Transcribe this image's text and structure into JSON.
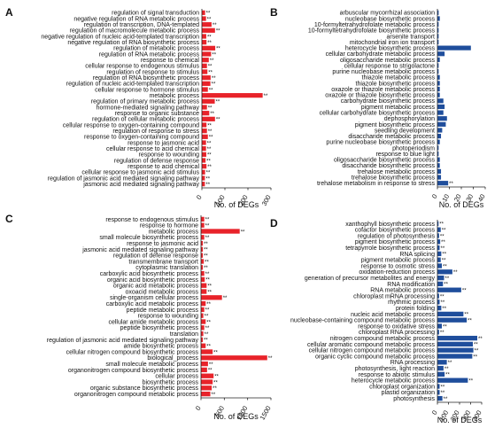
{
  "chart_data": [
    {
      "panel": "A",
      "type": "bar",
      "orientation": "horizontal",
      "color": "#e8232a",
      "xlabel": "No. of DEGs",
      "xlim": [
        0,
        300
      ],
      "xticks": [
        "0",
        "100",
        "200",
        "300"
      ],
      "categories": [
        "regulation of signal transduction",
        "negative regulation of RNA metabolic process",
        "regulation of transcription, DNA-templated",
        "regulation of macromolecule metabolic process",
        "negative regulation of nucleic acid-templated transcription",
        "negative regulation of RNA biosynthetic process",
        "regulation of metabolic process",
        "regulation of RNA metabolic process",
        "response to chemical",
        "cellular response to endogenous stimulus",
        "regulation of response to stimulus",
        "regulation of RNA biosynthetic process",
        "regulation of nucleic acid-templated transcription",
        "cellular response to hormone stimulus",
        "metabolic process",
        "regulation of primary metabolic process",
        "hormone-mediated signaling pathway",
        "response to organic substance",
        "regulation of cellular metabolic process",
        "cellular response to oxygen-containing compound",
        "regulation of response to stress",
        "response to oxygen-containing compound",
        "response to jasmonic acid",
        "cellular response to acid chemical",
        "response to wounding",
        "regulation of defense response",
        "response to acid chemical",
        "cellular response to jasmonic acid stimulus",
        "regulation of jasmonic acid mediated signaling pathway",
        "jasmonic acid mediated signaling pathway"
      ],
      "values": [
        14,
        18,
        42,
        57,
        19,
        20,
        58,
        40,
        30,
        22,
        24,
        38,
        37,
        26,
        264,
        56,
        22,
        32,
        57,
        20,
        22,
        26,
        18,
        18,
        19,
        16,
        20,
        14,
        13,
        13
      ],
      "significance": [
        "**",
        "**",
        "**",
        "**",
        "**",
        "**",
        "**",
        "**",
        "**",
        "**",
        "**",
        "**",
        "**",
        "**",
        "**",
        "**",
        "**",
        "**",
        "**",
        "**",
        "**",
        "**",
        "**",
        "**",
        "**",
        "**",
        "**",
        "**",
        "**",
        "**"
      ]
    },
    {
      "panel": "B",
      "type": "bar",
      "orientation": "horizontal",
      "color": "#1f4e9c",
      "xlabel": "No. of DEGs",
      "xlim": [
        0,
        40
      ],
      "xticks": [
        "0",
        "10",
        "20",
        "30",
        "40"
      ],
      "categories": [
        "arbuscular mycorrhizal association",
        "nucleobase biosynthetic process",
        "10-formyltetrahydrofolate metabolic process",
        "10-formyltetrahydrofolate biosynthetic process",
        "arsenite transport",
        "mitochondrial iron ion transport",
        "heterocycle biosynthetic process",
        "cellular carbohydrate metabolic process",
        "oligosaccharide metabolic process",
        "cellular response to strigolactone",
        "purine nucleobase metabolic process",
        "thiazole metabolic process",
        "thiazole biosynthetic process",
        "oxazole or thiazole metabolic process",
        "oxazole or thiazole biosynthetic process",
        "carbohydrate biosynthetic process",
        "pigment metabolic process",
        "cellular carbohydrate biosynthetic process",
        "dephosphorylation",
        "pigment biosynthetic process",
        "seedling development",
        "disaccharide metabolic process",
        "purine nucleobase biosynthetic process",
        "photoperiodism",
        "response to blue light",
        "oligosaccharide biosynthetic process",
        "disaccharide biosynthetic process",
        "trehalose metabolic process",
        "trehalose biosynthetic process",
        "trehalose metabolism in response to stress"
      ],
      "values": [
        1,
        2,
        1,
        1,
        1,
        1,
        28,
        6,
        2,
        1,
        1,
        2,
        2,
        2,
        2,
        5,
        6,
        5,
        8,
        7,
        4,
        3,
        2,
        1,
        1,
        2,
        2,
        3,
        3,
        9
      ],
      "significance": [
        "",
        "",
        "",
        "",
        "",
        "",
        "",
        "",
        "",
        "",
        "",
        "",
        "",
        "",
        "",
        "",
        "",
        "",
        "",
        "",
        "",
        "",
        "",
        "",
        "",
        "",
        "",
        "",
        "",
        "**"
      ]
    },
    {
      "panel": "C",
      "type": "bar",
      "orientation": "horizontal",
      "color": "#e8232a",
      "xlabel": "No. of DEGs",
      "xlim": [
        0,
        1500
      ],
      "xticks": [
        "0",
        "500",
        "1000",
        "1500"
      ],
      "categories": [
        "response to endogenous stimulus",
        "response to hormone",
        "metabolic process",
        "small molecule biosynthetic process",
        "response to jasmonic acid",
        "jasmonic acid mediated signaling pathway",
        "regulation of defense response",
        "transmembrane transport",
        "cytoplasmic translation",
        "carboxylic acid biosynthetic process",
        "organic acid biosynthetic process",
        "organic acid metabolic process",
        "oxoacid metabolic process",
        "single-organism cellular process",
        "carboxylic acid metabolic process",
        "peptide metabolic process",
        "response to wounding",
        "cellular amide metabolic process",
        "peptide biosynthetic process",
        "translation",
        "regulation of jasmonic acid mediated signaling pathway",
        "amide biosynthetic process",
        "cellular nitrogen compound biosynthetic process",
        "biological_process",
        "small molecule metabolic process",
        "organonitrogen compound biosynthetic process",
        "cellular process",
        "biosynthetic process",
        "organic substance biosynthetic process",
        "organonitrogen compound metabolic process"
      ],
      "values": [
        70,
        70,
        830,
        70,
        40,
        40,
        40,
        60,
        40,
        70,
        80,
        120,
        120,
        450,
        100,
        70,
        50,
        100,
        70,
        50,
        40,
        100,
        250,
        1420,
        150,
        130,
        270,
        250,
        230,
        200
      ],
      "significance": [
        "**",
        "**",
        "**",
        "**",
        "**",
        "**",
        "**",
        "**",
        "**",
        "**",
        "**",
        "**",
        "**",
        "**",
        "**",
        "**",
        "**",
        "**",
        "**",
        "**",
        "**",
        "**",
        "**",
        "**",
        "**",
        "**",
        "**",
        "**",
        "**",
        "**"
      ]
    },
    {
      "panel": "D",
      "type": "bar",
      "orientation": "horizontal",
      "color": "#1f4e9c",
      "xlabel": "No. of DEGs",
      "xlim": [
        0,
        400
      ],
      "xticks": [
        "0",
        "100",
        "200",
        "300",
        "400"
      ],
      "categories": [
        "xanthophyll biosynthetic process",
        "cofactor biosynthetic process",
        "regulation of photosynthesis",
        "pigment biosynthetic process",
        "tetrapyrrole biosynthetic process",
        "RNA splicing",
        "pigment metabolic process",
        "response to osmotic stress",
        "oxidation-reduction process",
        "generation of precursor metabolites and energy",
        "RNA modification",
        "RNA metabolic process",
        "chloroplast mRNA processing",
        "rhythmic process",
        "protein folding",
        "nucleic acid metabolic process",
        "nucleobase-containing compound metabolic process",
        "response to oxidative stress",
        "chloroplast RNA processing",
        "nitrogen compound metabolic process",
        "cellular aromatic compound metabolic process",
        "cellular nitrogen compound metabolic process",
        "organic cyclic compound metabolic process",
        "RNA processing",
        "photosynthesis, light reaction",
        "response to abiotic stimulus",
        "heterocycle metabolic process",
        "chloroplast organization",
        "plastid organization",
        "photosynthesis"
      ],
      "values": [
        10,
        30,
        15,
        25,
        20,
        35,
        30,
        40,
        135,
        60,
        50,
        215,
        15,
        20,
        35,
        235,
        265,
        40,
        15,
        360,
        320,
        325,
        315,
        85,
        55,
        65,
        275,
        20,
        20,
        45
      ],
      "significance": [
        "**",
        "**",
        "**",
        "**",
        "**",
        "**",
        "**",
        "**",
        "**",
        "**",
        "**",
        "**",
        "**",
        "**",
        "**",
        "**",
        "**",
        "**",
        "**",
        "**",
        "**",
        "**",
        "**",
        "**",
        "**",
        "**",
        "**",
        "**",
        "**",
        "**"
      ]
    }
  ]
}
